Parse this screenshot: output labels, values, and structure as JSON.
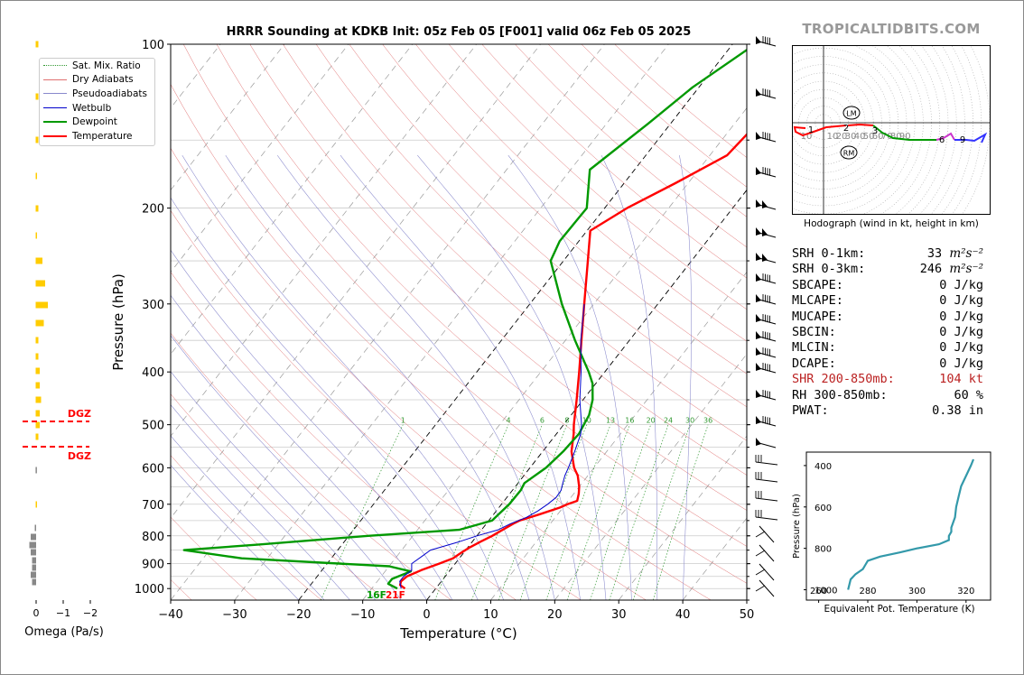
{
  "title": "HRRR Sounding at KDKB Init: 05z Feb 05 [F001] valid 06z Feb 05 2025",
  "brand": "TROPICALTIDBITS.COM",
  "colors": {
    "temperature": "#ff0000",
    "dewpoint": "#009900",
    "wetbulb": "#0000cc",
    "dry_adiabat": "#e07070",
    "moist_adiabat": "#8888cc",
    "mixing_ratio": "#339933",
    "isotherm": "#999999",
    "dgz": "#ff0000",
    "omega": "#888888",
    "omega_pos": "#ffcc00",
    "theta_e": "#3399aa",
    "brand": "#999999"
  },
  "chart_data": [
    {
      "type": "line",
      "name": "skew-t",
      "title": "HRRR Sounding at KDKB Init: 05z Feb 05 [F001] valid 06z Feb 05 2025",
      "xlabel": "Temperature (°C)",
      "ylabel": "Pressure (hPa)",
      "xlim": [
        -40,
        50
      ],
      "ylim": [
        1050,
        100
      ],
      "log_y": true,
      "x_ticks": [
        "−40",
        "−30",
        "−20",
        "−10",
        "0",
        "10",
        "20",
        "30",
        "40",
        "50"
      ],
      "y_ticks": [
        "100",
        "200",
        "300",
        "400",
        "500",
        "600",
        "700",
        "800",
        "900",
        "1000"
      ],
      "legend": [
        "Sat. Mix. Ratio",
        "Dry Adiabats",
        "Pseudoadiabats",
        "Wetbulb",
        "Dewpoint",
        "Temperature"
      ],
      "legend_position": "top-left",
      "mixing_ratio_labels": [
        "1",
        "4",
        "6",
        "8",
        "10",
        "13",
        "16",
        "20",
        "24",
        "30",
        "36"
      ],
      "surface_labels": {
        "dewpoint": "16F",
        "temperature": "21F"
      },
      "series": [
        {
          "name": "Temperature",
          "points": [
            [
              1000,
              -4.8
            ],
            [
              985,
              -6.0
            ],
            [
              970,
              -6.3
            ],
            [
              950,
              -6.0
            ],
            [
              925,
              -4.5
            ],
            [
              900,
              -2.5
            ],
            [
              880,
              -1.0
            ],
            [
              860,
              -0.4
            ],
            [
              840,
              0.3
            ],
            [
              820,
              1.3
            ],
            [
              800,
              2.4
            ],
            [
              780,
              3.3
            ],
            [
              760,
              4.2
            ],
            [
              750,
              4.8
            ],
            [
              730,
              7.2
            ],
            [
              710,
              9.5
            ],
            [
              700,
              10.3
            ],
            [
              690,
              11.4
            ],
            [
              670,
              10.8
            ],
            [
              650,
              10.0
            ],
            [
              620,
              8.4
            ],
            [
              600,
              6.9
            ],
            [
              560,
              4.5
            ],
            [
              520,
              2.7
            ],
            [
              500,
              1.6
            ],
            [
              450,
              -1.0
            ],
            [
              400,
              -4.0
            ],
            [
              350,
              -7.5
            ],
            [
              300,
              -11.5
            ],
            [
              250,
              -16.2
            ],
            [
              220,
              -19.5
            ],
            [
              200,
              -16.5
            ],
            [
              180,
              -12.0
            ],
            [
              160,
              -7.3
            ],
            [
              140,
              -6.5
            ],
            [
              120,
              -5.0
            ],
            [
              100,
              0.0
            ]
          ]
        },
        {
          "name": "Dewpoint",
          "points": [
            [
              1000,
              -6.0
            ],
            [
              980,
              -8.0
            ],
            [
              960,
              -8.0
            ],
            [
              930,
              -6.0
            ],
            [
              910,
              -10.0
            ],
            [
              880,
              -34.0
            ],
            [
              850,
              -44.0
            ],
            [
              830,
              -33.0
            ],
            [
              800,
              -17.0
            ],
            [
              780,
              -3.5
            ],
            [
              750,
              0.5
            ],
            [
              700,
              1.2
            ],
            [
              660,
              1.3
            ],
            [
              640,
              1.0
            ],
            [
              600,
              2.5
            ],
            [
              560,
              3.2
            ],
            [
              520,
              3.5
            ],
            [
              480,
              2.8
            ],
            [
              450,
              1.5
            ],
            [
              420,
              -0.5
            ],
            [
              400,
              -2.5
            ],
            [
              350,
              -8.5
            ],
            [
              300,
              -15.0
            ],
            [
              250,
              -22.0
            ],
            [
              230,
              -23.0
            ],
            [
              200,
              -22.8
            ],
            [
              170,
              -27.0
            ],
            [
              140,
              -23.5
            ],
            [
              120,
              -21.0
            ],
            [
              100,
              -16.5
            ]
          ]
        },
        {
          "name": "Wetbulb",
          "points": [
            [
              1000,
              -5.4
            ],
            [
              970,
              -6.5
            ],
            [
              950,
              -6.5
            ],
            [
              925,
              -6.0
            ],
            [
              900,
              -6.8
            ],
            [
              870,
              -6.0
            ],
            [
              850,
              -5.5
            ],
            [
              820,
              -2.0
            ],
            [
              800,
              0.0
            ],
            [
              780,
              2.6
            ],
            [
              760,
              3.8
            ],
            [
              740,
              5.5
            ],
            [
              720,
              6.5
            ],
            [
              700,
              7.2
            ],
            [
              680,
              7.7
            ],
            [
              660,
              7.6
            ],
            [
              640,
              7.0
            ],
            [
              620,
              6.4
            ],
            [
              600,
              6.0
            ],
            [
              560,
              5.0
            ],
            [
              520,
              3.8
            ],
            [
              500,
              2.8
            ],
            [
              450,
              -0.5
            ],
            [
              400,
              -3.7
            ],
            [
              350,
              -7.6
            ],
            [
              300,
              -11.5
            ]
          ]
        }
      ]
    },
    {
      "type": "line",
      "name": "hodograph",
      "title": "Hodograph (wind in kt, height in km)",
      "ring_labels": [
        "10",
        "20",
        "30",
        "40",
        "50",
        "60",
        "70",
        "80",
        "90"
      ],
      "height_labels": [
        "1",
        "2",
        "3",
        "6",
        "9"
      ],
      "markers": [
        "LM",
        "RM"
      ]
    },
    {
      "type": "line",
      "name": "theta-e",
      "xlabel": "Equivalent Pot. Temperature (K)",
      "ylabel": "Pressure (hPa)",
      "xlim": [
        255,
        330
      ],
      "ylim": [
        1050,
        335
      ],
      "x_ticks": [
        "260",
        "280",
        "300",
        "320"
      ],
      "y_ticks": [
        "400",
        "600",
        "800",
        "1000"
      ],
      "points": [
        [
          1000,
          272
        ],
        [
          975,
          272.5
        ],
        [
          950,
          273
        ],
        [
          925,
          275
        ],
        [
          900,
          278
        ],
        [
          880,
          279
        ],
        [
          860,
          280
        ],
        [
          840,
          285
        ],
        [
          820,
          293
        ],
        [
          800,
          300
        ],
        [
          780,
          309
        ],
        [
          760,
          313
        ],
        [
          740,
          313
        ],
        [
          720,
          314
        ],
        [
          700,
          314
        ],
        [
          650,
          315.5
        ],
        [
          600,
          316
        ],
        [
          550,
          317
        ],
        [
          500,
          318
        ],
        [
          450,
          320
        ],
        [
          400,
          322
        ],
        [
          370,
          323
        ]
      ]
    },
    {
      "type": "bar",
      "name": "omega",
      "xlabel": "Omega (Pa/s)",
      "x_ticks": [
        "0",
        "−1",
        "−2"
      ],
      "dgz_label": "DGZ",
      "dgz_levels": [
        480,
        550
      ]
    }
  ],
  "params": [
    {
      "label": "SRH 0-1km:",
      "value": "33",
      "unit": "m²s⁻²"
    },
    {
      "label": "SRH 0-3km:",
      "value": "246",
      "unit": "m²s⁻²"
    },
    {
      "label": "SBCAPE:",
      "value": "0 J/kg"
    },
    {
      "label": "MLCAPE:",
      "value": "0 J/kg"
    },
    {
      "label": "MUCAPE:",
      "value": "0 J/kg"
    },
    {
      "label": "SBCIN:",
      "value": "0 J/kg"
    },
    {
      "label": "MLCIN:",
      "value": "0 J/kg"
    },
    {
      "label": "DCAPE:",
      "value": "0 J/kg"
    },
    {
      "label": "SHR 200-850mb:",
      "value": "104 kt"
    },
    {
      "label": "RH 300-850mb:",
      "value": "60 %"
    },
    {
      "label": "PWAT:",
      "value": "0.38 in"
    }
  ]
}
